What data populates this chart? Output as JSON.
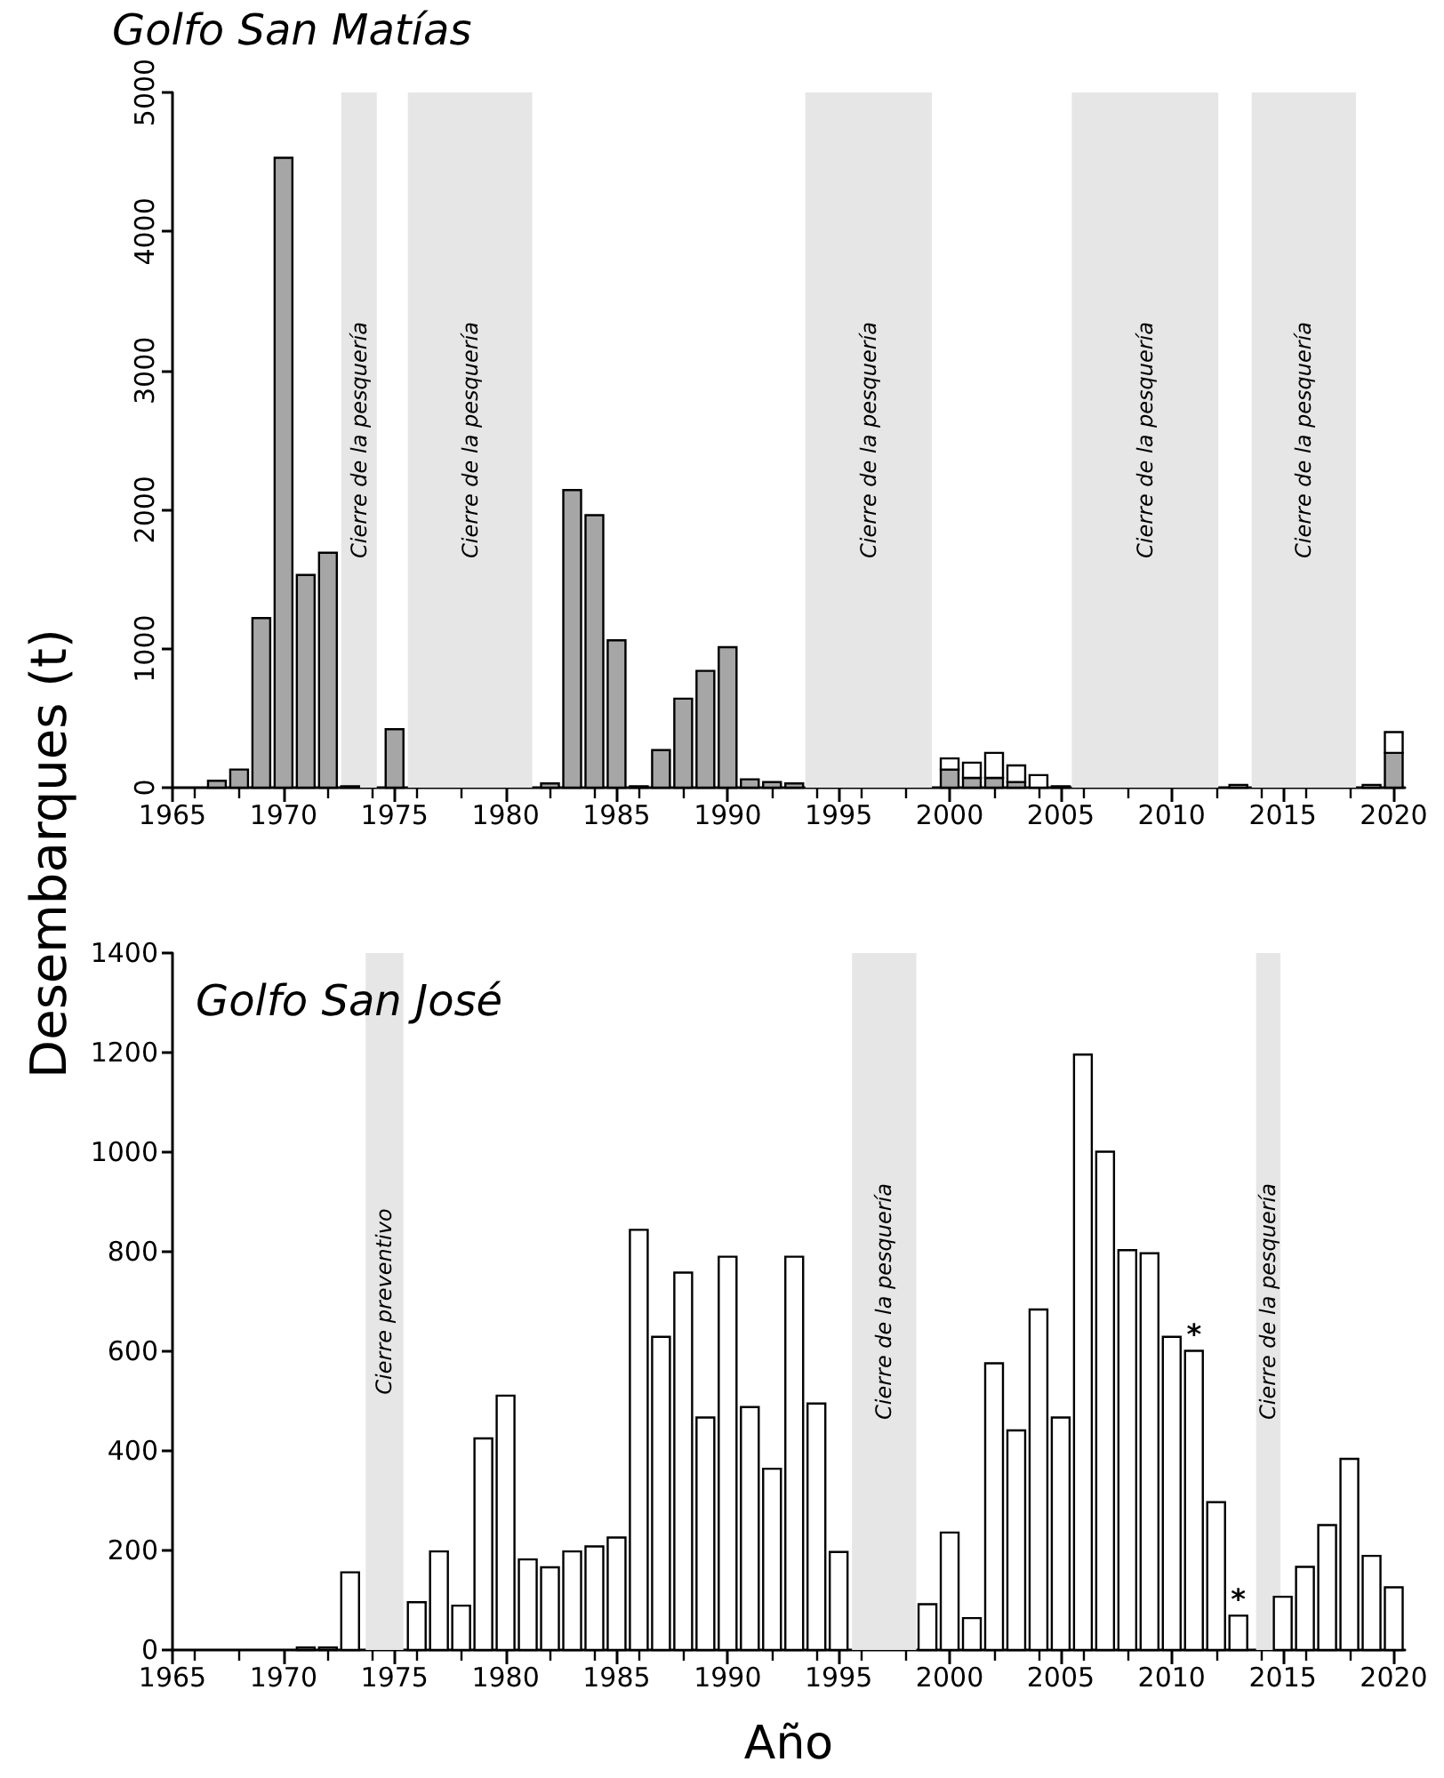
{
  "chart_data": [
    {
      "type": "bar",
      "title": "Golfo San Matías",
      "ylabel": "Desembarques (t)",
      "stacked": true,
      "x": [
        1967,
        1968,
        1969,
        1970,
        1971,
        1972,
        1973,
        1975,
        1982,
        1983,
        1984,
        1985,
        1986,
        1987,
        1988,
        1989,
        1990,
        1991,
        1992,
        1993,
        2000,
        2001,
        2002,
        2003,
        2004,
        2005,
        2013,
        2019,
        2020
      ],
      "series": [
        {
          "color": "#a6a6a6",
          "values": [
            50,
            130,
            1220,
            4530,
            1530,
            1690,
            10,
            420,
            30,
            2140,
            1960,
            1060,
            10,
            270,
            640,
            840,
            1010,
            60,
            40,
            30,
            130,
            70,
            70,
            40,
            null,
            10,
            20,
            20,
            250
          ]
        },
        {
          "color": "#ffffff",
          "values": [
            null,
            null,
            null,
            null,
            null,
            null,
            null,
            null,
            null,
            null,
            null,
            null,
            null,
            null,
            null,
            null,
            null,
            null,
            null,
            null,
            80,
            110,
            180,
            120,
            90,
            null,
            null,
            null,
            150
          ]
        }
      ],
      "xlim": [
        1965,
        2020.5
      ],
      "xticks": [
        1965,
        1970,
        1975,
        1980,
        1985,
        1990,
        1995,
        2000,
        2005,
        2010,
        2015,
        2020
      ],
      "ylim": [
        0,
        5000
      ],
      "yticks": [
        0,
        1000,
        2000,
        3000,
        4000,
        5000
      ],
      "grid": false,
      "bands": [
        {
          "axis": "x",
          "from": 1972.6,
          "to": 1974.2,
          "label": "Cierre de la pesquería",
          "color": "#e6e6e6"
        },
        {
          "axis": "x",
          "from": 1975.6,
          "to": 1981.2,
          "label": "Cierre de la pesquería",
          "color": "#e6e6e6"
        },
        {
          "axis": "x",
          "from": 1993.5,
          "to": 1999.2,
          "label": "Cierre de la pesquería",
          "color": "#e6e6e6"
        },
        {
          "axis": "x",
          "from": 2005.5,
          "to": 2012.1,
          "label": "Cierre de la pesquería",
          "color": "#e6e6e6"
        },
        {
          "axis": "x",
          "from": 2013.6,
          "to": 2018.3,
          "label": "Cierre de la pesquería",
          "color": "#e6e6e6"
        }
      ]
    },
    {
      "type": "bar",
      "title": "Golfo San José",
      "xlabel": "Año",
      "x": [
        1971,
        1972,
        1973,
        1976,
        1977,
        1978,
        1979,
        1980,
        1981,
        1982,
        1983,
        1984,
        1985,
        1986,
        1987,
        1988,
        1989,
        1990,
        1991,
        1992,
        1993,
        1994,
        1995,
        1999,
        2000,
        2001,
        2002,
        2003,
        2004,
        2005,
        2006,
        2007,
        2008,
        2009,
        2010,
        2011,
        2012,
        2013,
        2015,
        2016,
        2017,
        2018,
        2019,
        2020
      ],
      "series": [
        {
          "color": "#ffffff",
          "values": [
            5,
            5,
            156,
            96,
            198,
            89,
            425,
            511,
            182,
            166,
            198,
            208,
            226,
            844,
            629,
            758,
            467,
            790,
            488,
            364,
            790,
            495,
            197,
            92,
            236,
            64,
            576,
            441,
            684,
            467,
            1196,
            1001,
            803,
            797,
            629,
            601,
            297,
            69,
            107,
            167,
            251,
            384,
            189,
            126
          ]
        }
      ],
      "xlim": [
        1965,
        2020.5
      ],
      "xticks": [
        1965,
        1970,
        1975,
        1980,
        1985,
        1990,
        1995,
        2000,
        2005,
        2010,
        2015,
        2020
      ],
      "ylim": [
        0,
        1400
      ],
      "yticks": [
        0,
        200,
        400,
        600,
        800,
        1000,
        1200,
        1400
      ],
      "grid": false,
      "annotations": [
        {
          "text": "*",
          "x": 2011,
          "y": 601
        },
        {
          "text": "*",
          "x": 2013,
          "y": 69
        }
      ],
      "bands": [
        {
          "axis": "x",
          "from": 1973.7,
          "to": 1975.4,
          "label": "Cierre preventivo",
          "color": "#e6e6e6"
        },
        {
          "axis": "x",
          "from": 1995.6,
          "to": 1998.5,
          "label": "Cierre de la pesquería",
          "color": "#e6e6e6"
        },
        {
          "axis": "x",
          "from": 2013.8,
          "to": 2014.9,
          "label": "Cierre de la pesquería",
          "color": "#e6e6e6"
        }
      ]
    }
  ]
}
